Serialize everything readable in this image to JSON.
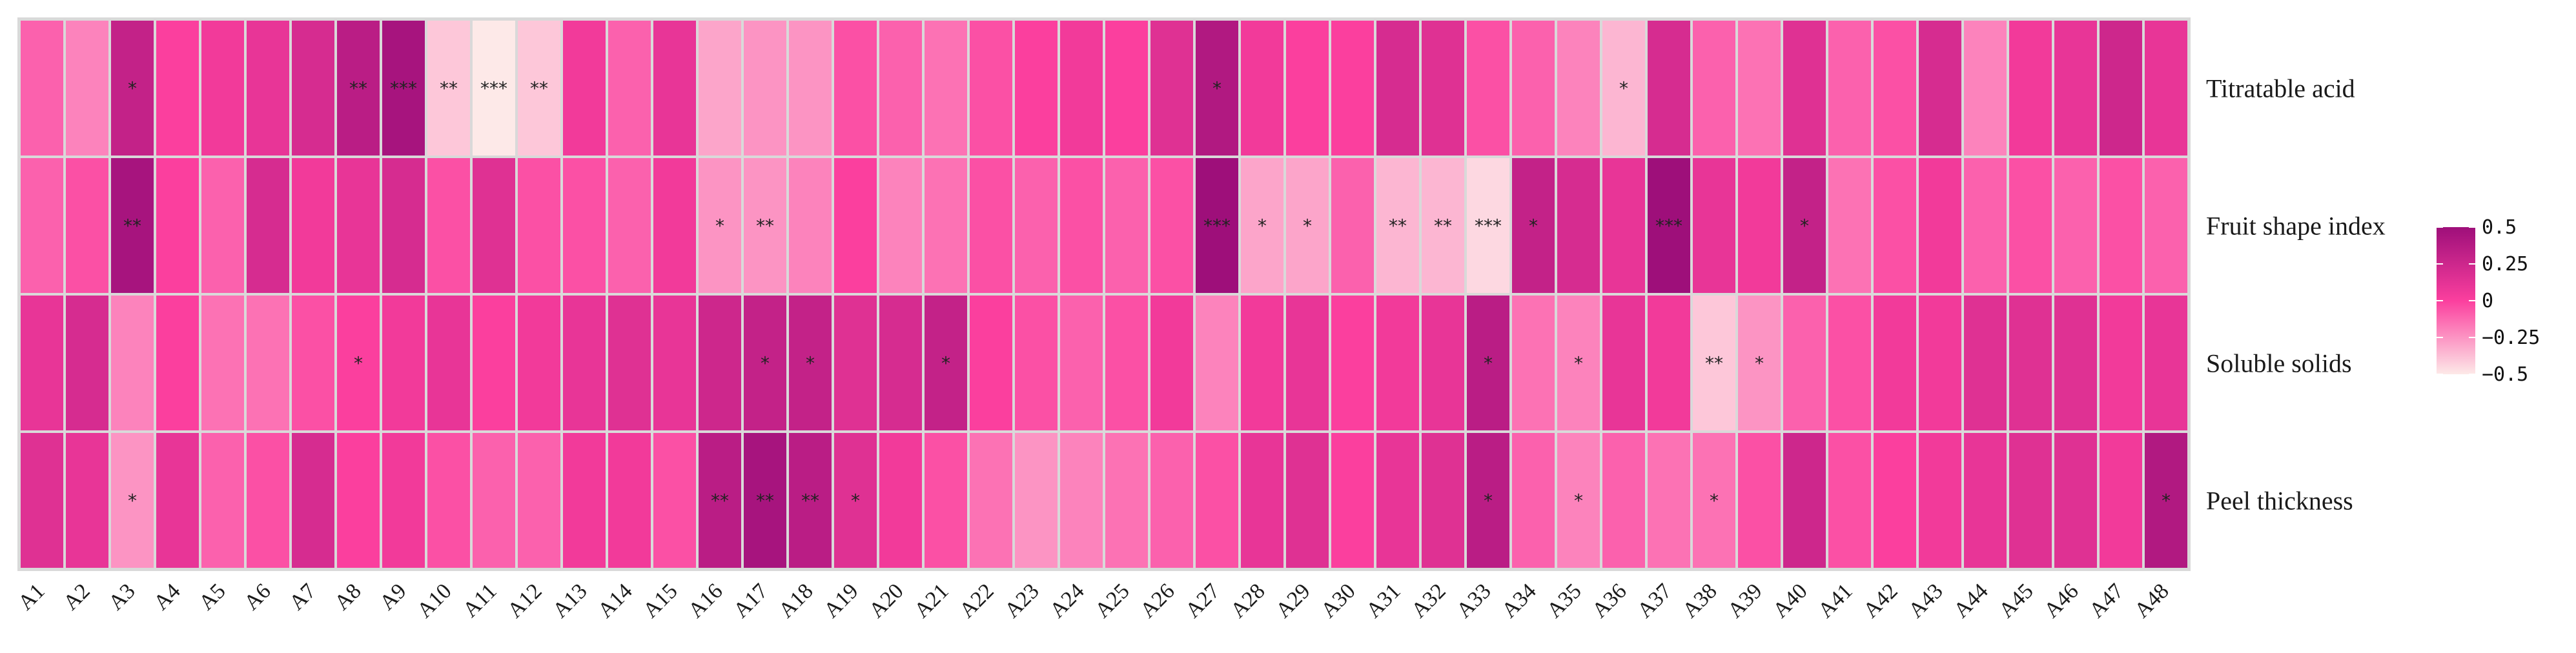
{
  "colors": {
    "low": "#fde9e8",
    "mid": "#fb3f9e",
    "high": "#9e0f7a",
    "grid": "#d9d9d9",
    "cell_border": "#e8e8e8"
  },
  "chart_data": {
    "type": "heatmap",
    "title": "",
    "xlabel": "",
    "ylabel": "",
    "columns": [
      "A1",
      "A2",
      "A3",
      "A4",
      "A5",
      "A6",
      "A7",
      "A8",
      "A9",
      "A10",
      "A11",
      "A12",
      "A13",
      "A14",
      "A15",
      "A16",
      "A17",
      "A18",
      "A19",
      "A20",
      "A21",
      "A22",
      "A23",
      "A24",
      "A25",
      "A26",
      "A27",
      "A28",
      "A29",
      "A30",
      "A31",
      "A32",
      "A33",
      "A34",
      "A35",
      "A36",
      "A37",
      "A38",
      "A39",
      "A40",
      "A41",
      "A42",
      "A43",
      "A44",
      "A45",
      "A46",
      "A47",
      "A48"
    ],
    "rows": [
      {
        "name": "Titratable acid",
        "values": [
          -0.1,
          -0.2,
          0.3,
          0.0,
          0.05,
          0.1,
          0.2,
          0.35,
          0.45,
          -0.4,
          -0.5,
          -0.4,
          0.05,
          -0.1,
          0.1,
          -0.3,
          -0.25,
          -0.25,
          -0.05,
          -0.1,
          -0.15,
          -0.05,
          0.0,
          0.05,
          0.0,
          0.15,
          0.4,
          0.05,
          0.0,
          0.0,
          0.2,
          0.15,
          -0.05,
          -0.1,
          -0.2,
          -0.35,
          0.2,
          -0.1,
          -0.15,
          0.15,
          -0.1,
          -0.05,
          0.2,
          -0.2,
          0.05,
          0.1,
          0.25,
          0.1
        ],
        "sig": [
          "",
          "",
          "*",
          "",
          "",
          "",
          "",
          "**",
          "***",
          "**",
          "***",
          "**",
          "",
          "",
          "",
          "",
          "",
          "",
          "",
          "",
          "",
          "",
          "",
          "",
          "",
          "",
          "*",
          "",
          "",
          "",
          "",
          "",
          "",
          "",
          "",
          "*",
          "",
          "",
          "",
          "",
          "",
          "",
          "",
          "",
          "",
          "",
          "",
          ""
        ]
      },
      {
        "name": "Fruit shape index",
        "values": [
          -0.1,
          -0.05,
          0.45,
          0.0,
          -0.1,
          0.2,
          0.05,
          0.1,
          0.2,
          -0.05,
          0.15,
          -0.05,
          -0.05,
          -0.1,
          0.05,
          -0.25,
          -0.25,
          -0.2,
          0.0,
          -0.2,
          -0.15,
          -0.05,
          -0.1,
          -0.05,
          -0.1,
          -0.05,
          0.5,
          -0.3,
          -0.3,
          -0.1,
          -0.35,
          -0.35,
          -0.45,
          0.3,
          0.2,
          0.1,
          0.55,
          0.1,
          0.05,
          0.3,
          -0.15,
          -0.05,
          0.05,
          -0.1,
          -0.05,
          -0.1,
          -0.05,
          -0.1
        ],
        "sig": [
          "",
          "",
          "**",
          "",
          "",
          "",
          "",
          "",
          "",
          "",
          "",
          "",
          "",
          "",
          "",
          "*",
          "**",
          "",
          "",
          "",
          "",
          "",
          "",
          "",
          "",
          "",
          "***",
          "*",
          "*",
          "",
          "**",
          "**",
          "***",
          "*",
          "",
          "",
          "***",
          "",
          "",
          "*",
          "",
          "",
          "",
          "",
          "",
          "",
          "",
          ""
        ]
      },
      {
        "name": "Soluble solids",
        "values": [
          0.1,
          0.2,
          -0.2,
          0.0,
          -0.15,
          -0.15,
          -0.05,
          0.0,
          0.05,
          0.1,
          0.0,
          0.05,
          0.1,
          0.15,
          0.1,
          0.25,
          0.3,
          0.3,
          0.15,
          0.2,
          0.3,
          0.0,
          -0.05,
          -0.1,
          -0.05,
          0.05,
          -0.2,
          0.05,
          0.1,
          0.0,
          0.05,
          0.1,
          0.35,
          -0.15,
          -0.2,
          0.1,
          0.05,
          -0.4,
          -0.25,
          -0.1,
          -0.05,
          0.05,
          0.05,
          0.15,
          0.15,
          0.15,
          0.05,
          0.1
        ],
        "sig": [
          "",
          "",
          "",
          "",
          "",
          "",
          "",
          "*",
          "",
          "",
          "",
          "",
          "",
          "",
          "",
          "",
          "*",
          "*",
          "",
          "",
          "*",
          "",
          "",
          "",
          "",
          "",
          "",
          "",
          "",
          "",
          "",
          "",
          "*",
          "",
          "*",
          "",
          "",
          "**",
          "*",
          "",
          "",
          "",
          "",
          "",
          "",
          "",
          "",
          ""
        ]
      },
      {
        "name": "Peel thickness",
        "values": [
          0.15,
          0.1,
          -0.25,
          0.1,
          -0.1,
          -0.05,
          0.2,
          0.0,
          0.05,
          -0.05,
          -0.1,
          -0.1,
          0.05,
          0.05,
          -0.05,
          0.35,
          0.45,
          0.35,
          0.15,
          0.05,
          -0.05,
          -0.15,
          -0.25,
          -0.2,
          -0.15,
          -0.1,
          -0.05,
          0.1,
          0.15,
          0.0,
          0.1,
          0.15,
          0.35,
          -0.1,
          -0.2,
          -0.1,
          -0.15,
          -0.15,
          -0.05,
          0.25,
          -0.05,
          0.0,
          0.05,
          0.1,
          0.15,
          0.15,
          0.05,
          0.4
        ],
        "sig": [
          "",
          "",
          "*",
          "",
          "",
          "",
          "",
          "",
          "",
          "",
          "",
          "",
          "",
          "",
          "",
          "**",
          "**",
          "**",
          "*",
          "",
          "",
          "",
          "",
          "",
          "",
          "",
          "",
          "",
          "",
          "",
          "",
          "",
          "*",
          "",
          "*",
          "",
          "",
          "*",
          "",
          "",
          "",
          "",
          "",
          "",
          "",
          "",
          "",
          "*"
        ]
      }
    ],
    "scale": {
      "min": -0.5,
      "max": 0.5,
      "ticks": [
        "0.5",
        "0.25",
        "0",
        "−0.25",
        "−0.5"
      ],
      "tick_values": [
        0.5,
        0.25,
        0,
        -0.25,
        -0.5
      ]
    },
    "legend_position": "right",
    "grid": false
  }
}
